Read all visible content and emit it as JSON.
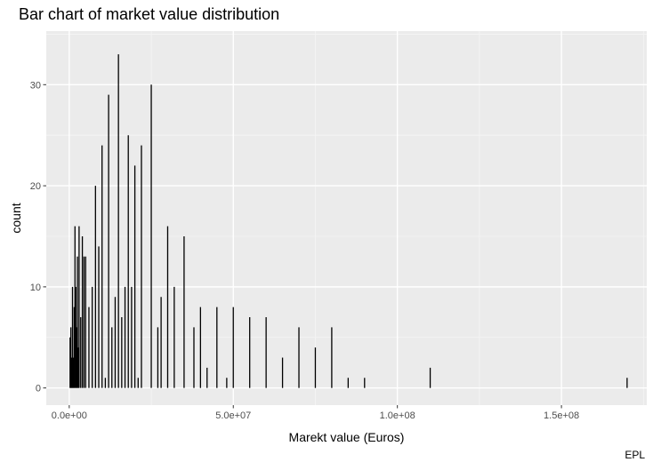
{
  "chart_data": {
    "type": "bar",
    "title": "Bar chart of market value distribution",
    "xlabel": "Marekt value (Euros)",
    "ylabel": "count",
    "caption": "EPL",
    "xlim": [
      -7000000,
      176000000
    ],
    "ylim": [
      -1.7,
      35.3
    ],
    "x_ticks": [
      {
        "value": 0,
        "label": "0.0e+00"
      },
      {
        "value": 50000000,
        "label": "5.0e+07"
      },
      {
        "value": 100000000,
        "label": "1.0e+08"
      },
      {
        "value": 150000000,
        "label": "1.5e+08"
      }
    ],
    "y_ticks": [
      {
        "value": 0,
        "label": "0"
      },
      {
        "value": 10,
        "label": "10"
      },
      {
        "value": 20,
        "label": "20"
      },
      {
        "value": 30,
        "label": "30"
      }
    ],
    "grid": true,
    "background": "#EBEBEB",
    "bar_color": "#000000",
    "points": [
      {
        "x": 50000,
        "y": 0
      },
      {
        "x": 250000,
        "y": 5
      },
      {
        "x": 500000,
        "y": 6
      },
      {
        "x": 750000,
        "y": 3
      },
      {
        "x": 1000000,
        "y": 10
      },
      {
        "x": 1250000,
        "y": 3
      },
      {
        "x": 1500000,
        "y": 8
      },
      {
        "x": 1750000,
        "y": 16
      },
      {
        "x": 2000000,
        "y": 10
      },
      {
        "x": 2250000,
        "y": 6
      },
      {
        "x": 2500000,
        "y": 13
      },
      {
        "x": 2750000,
        "y": 4
      },
      {
        "x": 3000000,
        "y": 16
      },
      {
        "x": 3500000,
        "y": 7
      },
      {
        "x": 4000000,
        "y": 15
      },
      {
        "x": 4500000,
        "y": 13
      },
      {
        "x": 5000000,
        "y": 13
      },
      {
        "x": 6000000,
        "y": 8
      },
      {
        "x": 7000000,
        "y": 10
      },
      {
        "x": 8000000,
        "y": 20
      },
      {
        "x": 9000000,
        "y": 14
      },
      {
        "x": 10000000,
        "y": 24
      },
      {
        "x": 11000000,
        "y": 1
      },
      {
        "x": 12000000,
        "y": 29
      },
      {
        "x": 13000000,
        "y": 6
      },
      {
        "x": 14000000,
        "y": 9
      },
      {
        "x": 15000000,
        "y": 33
      },
      {
        "x": 16000000,
        "y": 7
      },
      {
        "x": 17000000,
        "y": 10
      },
      {
        "x": 18000000,
        "y": 25
      },
      {
        "x": 19000000,
        "y": 10
      },
      {
        "x": 20000000,
        "y": 22
      },
      {
        "x": 21000000,
        "y": 1
      },
      {
        "x": 22000000,
        "y": 24
      },
      {
        "x": 25000000,
        "y": 30
      },
      {
        "x": 27000000,
        "y": 6
      },
      {
        "x": 28000000,
        "y": 9
      },
      {
        "x": 30000000,
        "y": 16
      },
      {
        "x": 32000000,
        "y": 10
      },
      {
        "x": 35000000,
        "y": 15
      },
      {
        "x": 38000000,
        "y": 6
      },
      {
        "x": 40000000,
        "y": 8
      },
      {
        "x": 42000000,
        "y": 2
      },
      {
        "x": 45000000,
        "y": 8
      },
      {
        "x": 48000000,
        "y": 1
      },
      {
        "x": 50000000,
        "y": 8
      },
      {
        "x": 55000000,
        "y": 7
      },
      {
        "x": 60000000,
        "y": 7
      },
      {
        "x": 65000000,
        "y": 3
      },
      {
        "x": 70000000,
        "y": 6
      },
      {
        "x": 75000000,
        "y": 4
      },
      {
        "x": 80000000,
        "y": 6
      },
      {
        "x": 85000000,
        "y": 1
      },
      {
        "x": 90000000,
        "y": 1
      },
      {
        "x": 110000000,
        "y": 2
      },
      {
        "x": 170000000,
        "y": 1
      }
    ]
  }
}
